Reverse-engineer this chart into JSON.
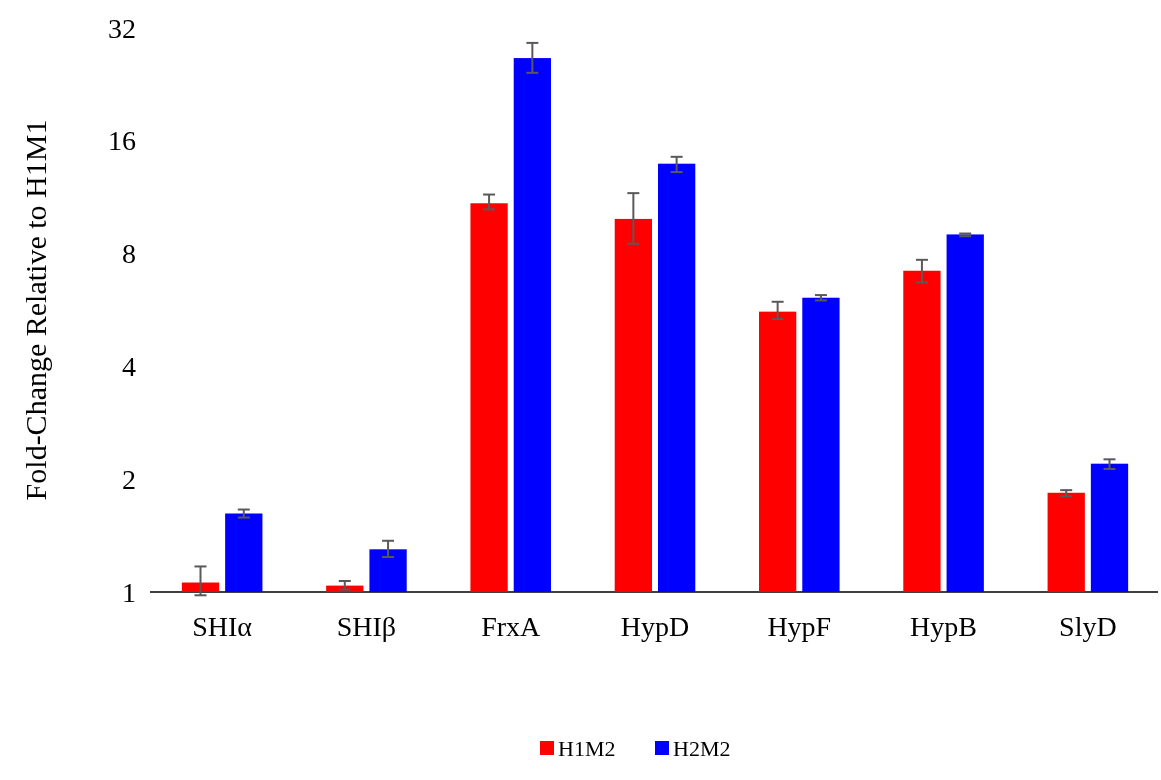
{
  "chart_data": {
    "type": "bar",
    "ylabel": "Fold-Change Relative to H1M1",
    "categories": [
      "SHIα",
      "SHIβ",
      "FrxA",
      "HypD",
      "HypF",
      "HypB",
      "SlyD"
    ],
    "log": "y",
    "ylim": [
      1,
      32
    ],
    "yticks": [
      1,
      2,
      4,
      8,
      16,
      32
    ],
    "legend": "bottom",
    "series": [
      {
        "name": "H1M2",
        "color": "#ff0000",
        "values": [
          1.06,
          1.04,
          10.9,
          9.9,
          5.6,
          7.2,
          1.84
        ],
        "errors": [
          [
            0.98,
            1.17
          ],
          [
            1.015,
            1.07
          ],
          [
            10.5,
            11.5
          ],
          [
            8.5,
            11.6
          ],
          [
            5.35,
            5.95
          ],
          [
            6.7,
            7.7
          ],
          [
            1.8,
            1.87
          ]
        ]
      },
      {
        "name": "H2M2",
        "color": "#0000ff",
        "values": [
          1.62,
          1.3,
          26.6,
          13.9,
          6.1,
          9.0,
          2.2
        ],
        "errors": [
          [
            1.58,
            1.66
          ],
          [
            1.24,
            1.37
          ],
          [
            24.3,
            29.2
          ],
          [
            13.2,
            14.5
          ],
          [
            6.0,
            6.2
          ],
          [
            8.9,
            9.05
          ],
          [
            2.13,
            2.26
          ]
        ]
      }
    ]
  }
}
